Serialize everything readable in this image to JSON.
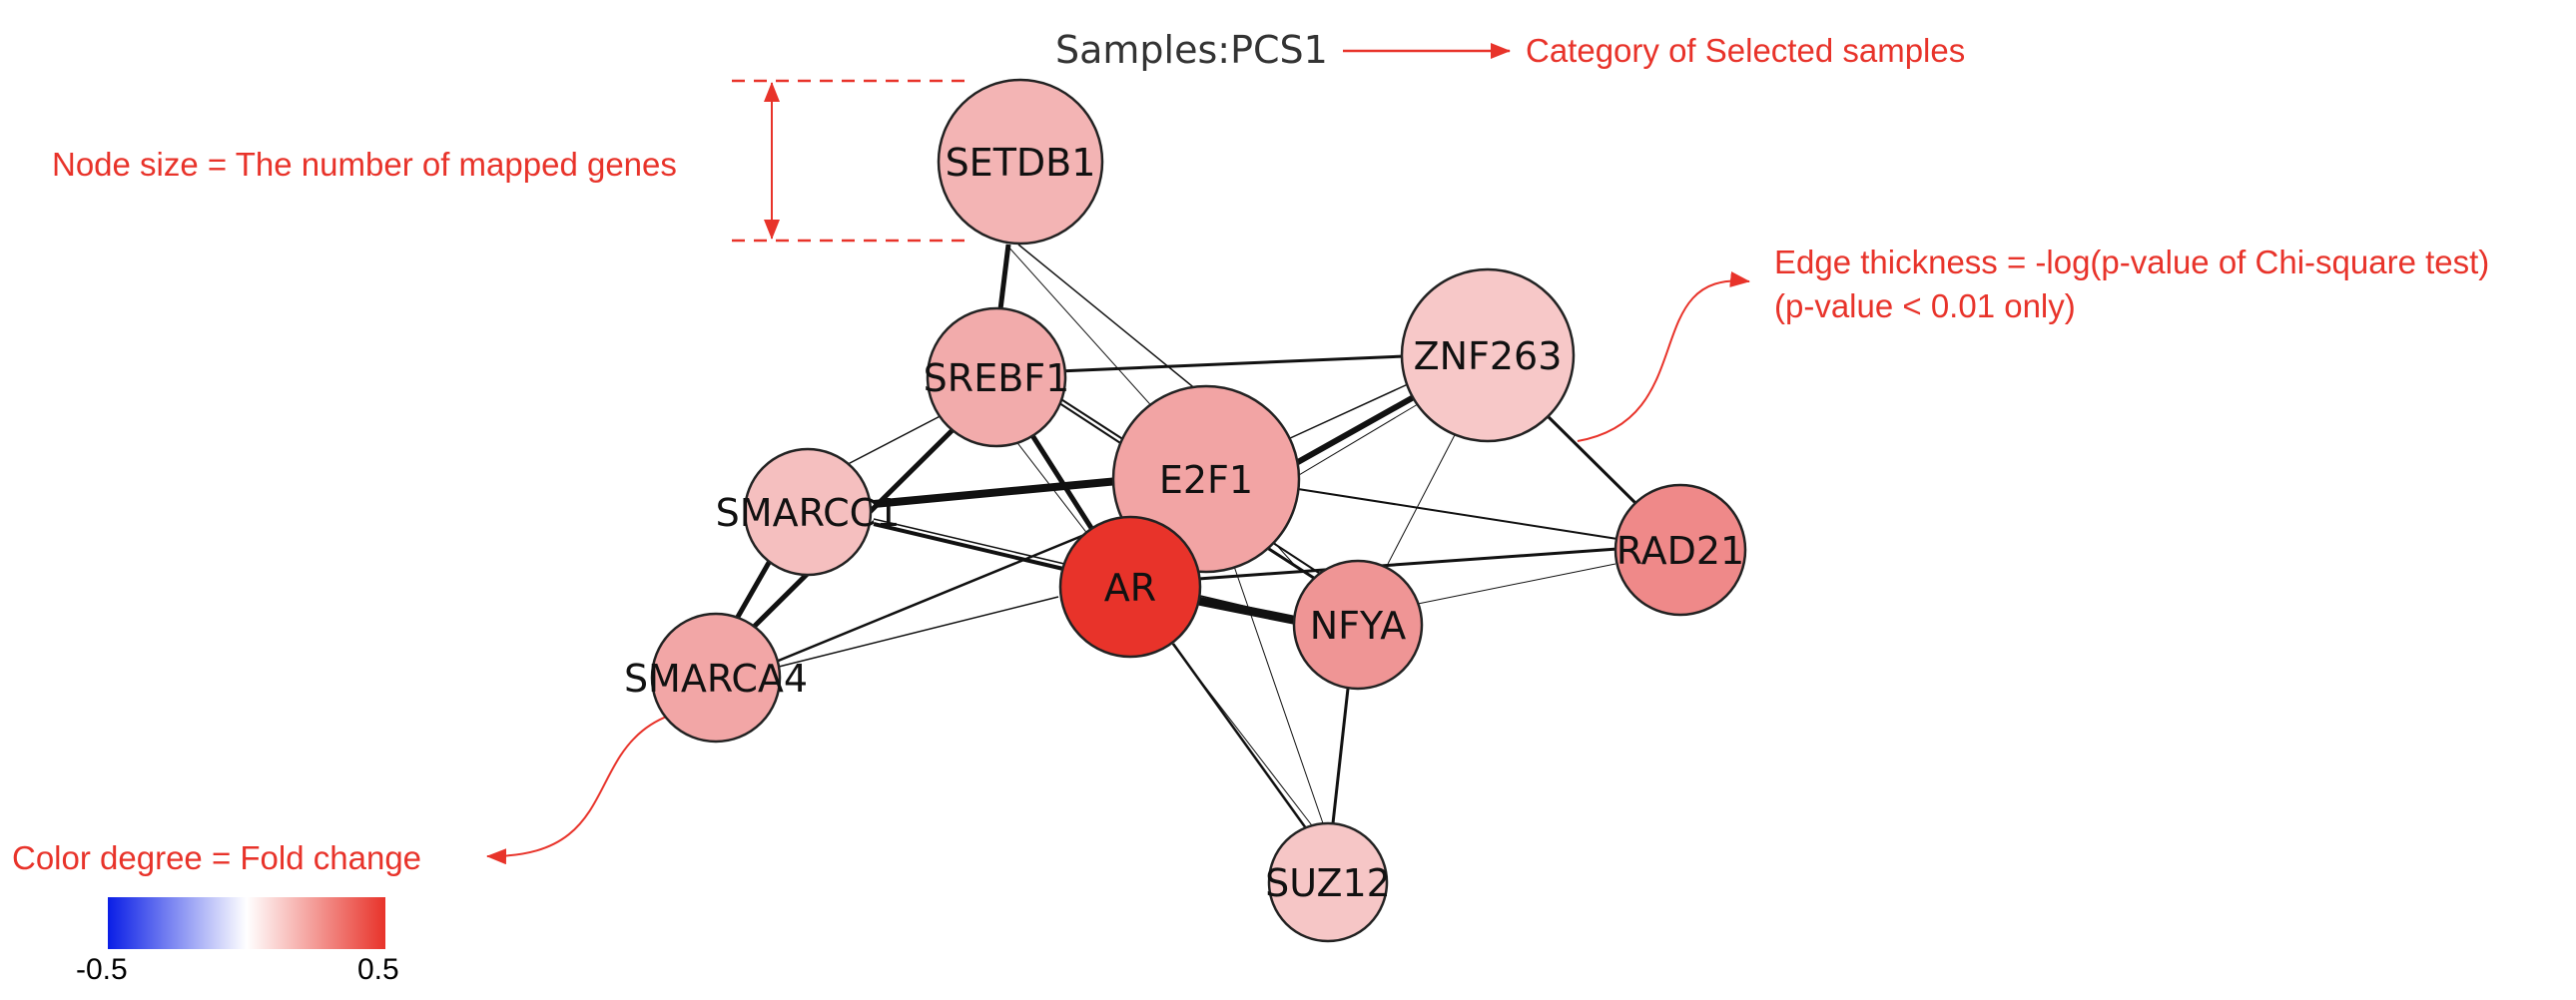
{
  "title": "Samples:PCS1",
  "annotations": {
    "category": "Category of Selected samples",
    "node_size": "Node size = The number of mapped genes",
    "edge_thickness_line1": "Edge thickness = -log(p-value of Chi-square test)",
    "edge_thickness_line2": "(p-value < 0.01 only)",
    "color_degree": "Color degree = Fold change"
  },
  "colorbar": {
    "min_label": "-0.5",
    "max_label": "0.5",
    "colors": [
      "#0a1ee6",
      "#ffffff",
      "#e8332a"
    ]
  },
  "colors": {
    "annotation": "#e8332a",
    "node_stroke": "#222222",
    "edge": "#111111"
  },
  "nodes": [
    {
      "id": "SETDB1",
      "label": "SETDB1",
      "fill": "#f3b4b4"
    },
    {
      "id": "SREBF1",
      "label": "SREBF1",
      "fill": "#f2abab"
    },
    {
      "id": "ZNF263",
      "label": "ZNF263",
      "fill": "#f7c8c8"
    },
    {
      "id": "E2F1",
      "label": "E2F1",
      "fill": "#f2a4a4"
    },
    {
      "id": "SMARCC1",
      "label": "SMARCC1",
      "fill": "#f5bfbf"
    },
    {
      "id": "AR",
      "label": "AR",
      "fill": "#e8332a"
    },
    {
      "id": "NFYA",
      "label": "NFYA",
      "fill": "#ef9595"
    },
    {
      "id": "RAD21",
      "label": "RAD21",
      "fill": "#ef8989"
    },
    {
      "id": "SMARCA4",
      "label": "SMARCA4",
      "fill": "#f2a6a6"
    },
    {
      "id": "SUZ12",
      "label": "SUZ12",
      "fill": "#f6c6c6"
    }
  ]
}
